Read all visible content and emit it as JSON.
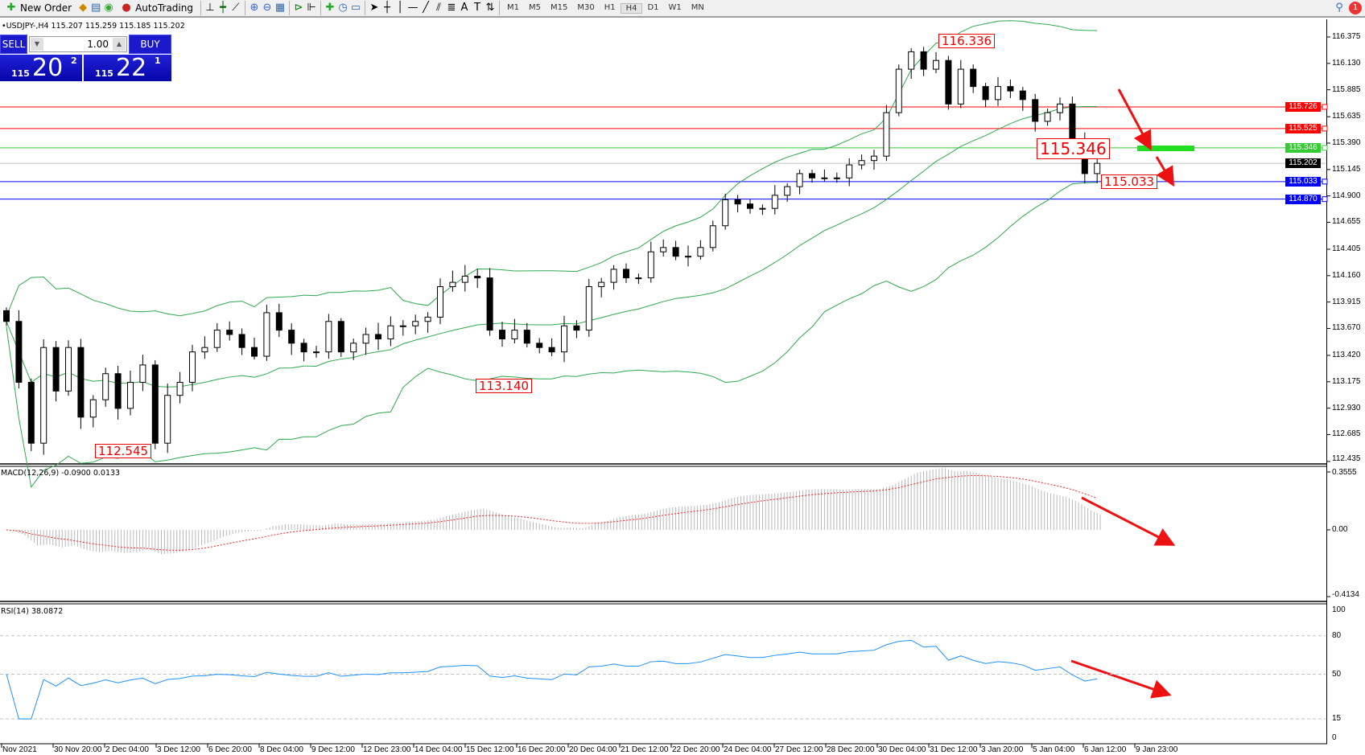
{
  "toolbar": {
    "new_order": "New Order",
    "autotrading": "AutoTrading",
    "timeframes": [
      "M1",
      "M5",
      "M15",
      "M30",
      "H1",
      "H4",
      "D1",
      "W1",
      "MN"
    ],
    "active_timeframe": "H4",
    "alerts_count": "1"
  },
  "symbol_info": "•USDJPY-,H4  115.207 115.259 115.185 115.202",
  "trade_panel": {
    "sell_label": "SELL",
    "buy_label": "BUY",
    "lot": "1.00",
    "sell_big": "115",
    "sell_mid": "20",
    "sell_sup": "2",
    "buy_big": "115",
    "buy_mid": "22",
    "buy_sup": "1"
  },
  "price_axis": [
    "116.375",
    "116.130",
    "115.885",
    "115.635",
    "115.390",
    "115.145",
    "114.900",
    "114.655",
    "114.405",
    "114.160",
    "113.915",
    "113.670",
    "113.420",
    "113.175",
    "112.930",
    "112.685",
    "112.435"
  ],
  "price_lines": [
    {
      "price": "115.726",
      "color": "#ff0000"
    },
    {
      "price": "115.525",
      "color": "#ff0000"
    },
    {
      "price": "115.346",
      "color": "#33cc33"
    },
    {
      "price": "115.202",
      "color": "#000000"
    },
    {
      "price": "115.033",
      "color": "#0000ff"
    },
    {
      "price": "114.870",
      "color": "#0000ff"
    }
  ],
  "annotations": {
    "high": "116.336",
    "mid": "115.346",
    "recent_low": "115.033",
    "low2": "113.140",
    "low1": "112.545"
  },
  "macd": {
    "label": "MACD(12,26,9) -0.0900 0.0133",
    "axis": [
      "0.3555",
      "0.00",
      "-0.4134"
    ]
  },
  "rsi": {
    "label": "RSI(14) 38.0872",
    "axis": [
      "100",
      "80",
      "50",
      "15",
      "0"
    ],
    "levels": [
      80,
      50,
      15
    ]
  },
  "time_axis": [
    "Nov 2021",
    "30 Nov 20:00",
    "2 Dec 04:00",
    "3 Dec 12:00",
    "6 Dec 20:00",
    "8 Dec 04:00",
    "9 Dec 12:00",
    "12 Dec 23:00",
    "14 Dec 04:00",
    "15 Dec 12:00",
    "16 Dec 20:00",
    "20 Dec 04:00",
    "21 Dec 12:00",
    "22 Dec 20:00",
    "24 Dec 04:00",
    "27 Dec 12:00",
    "28 Dec 20:00",
    "30 Dec 04:00",
    "31 Dec 12:00",
    "3 Jan 20:00",
    "5 Jan 04:00",
    "6 Jan 12:00",
    "9 Jan 23:00"
  ],
  "chart_data": {
    "type": "candlestick",
    "symbol": "USDJPY",
    "timeframe": "H4",
    "ylim": [
      112.435,
      116.375
    ],
    "closes": [
      113.735,
      113.17,
      112.605,
      113.493,
      113.089,
      113.493,
      112.847,
      113.008,
      113.25,
      112.928,
      113.17,
      113.331,
      112.605,
      113.049,
      113.17,
      113.452,
      113.493,
      113.654,
      113.614,
      113.493,
      113.412,
      113.816,
      113.654,
      113.533,
      113.452,
      113.452,
      113.735,
      113.452,
      113.533,
      113.614,
      113.573,
      113.694,
      113.694,
      113.735,
      113.775,
      114.058,
      114.098,
      114.155,
      114.139,
      113.654,
      113.573,
      113.654,
      113.533,
      113.493,
      113.452,
      113.694,
      113.654,
      114.058,
      114.098,
      114.219,
      114.139,
      114.139,
      114.381,
      114.421,
      114.34,
      114.34,
      114.421,
      114.623,
      114.865,
      114.825,
      114.784,
      114.784,
      114.906,
      114.986,
      115.107,
      115.067,
      115.067,
      115.067,
      115.188,
      115.228,
      115.269,
      115.673,
      116.076,
      116.238,
      116.076,
      116.157,
      115.753,
      116.076,
      115.915,
      115.794,
      115.915,
      115.874,
      115.794,
      115.592,
      115.673,
      115.753,
      115.43,
      115.107,
      115.202
    ]
  }
}
